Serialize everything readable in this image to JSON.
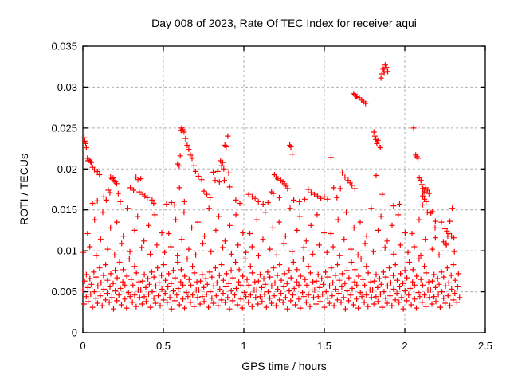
{
  "window": {
    "background": "#ffffff"
  },
  "chart_data": {
    "type": "scatter",
    "title": "Day 008 of 2023, Rate Of TEC Index for receiver aqui",
    "xlabel": "GPS time / hours",
    "ylabel": "ROTI / TECUs",
    "xlim": [
      0,
      2.5
    ],
    "ylim": [
      0,
      0.035
    ],
    "xticks": [
      {
        "value": 0,
        "label": "0"
      },
      {
        "value": 0.5,
        "label": "0.5"
      },
      {
        "value": 1,
        "label": "1"
      },
      {
        "value": 1.5,
        "label": "1.5"
      },
      {
        "value": 2,
        "label": "2"
      },
      {
        "value": 2.5,
        "label": "2.5"
      }
    ],
    "yticks": [
      {
        "value": 0,
        "label": "0"
      },
      {
        "value": 0.005,
        "label": "0.005"
      },
      {
        "value": 0.01,
        "label": "0.01"
      },
      {
        "value": 0.015,
        "label": "0.015"
      },
      {
        "value": 0.02,
        "label": "0.02"
      },
      {
        "value": 0.025,
        "label": "0.025"
      },
      {
        "value": 0.03,
        "label": "0.03"
      },
      {
        "value": 0.035,
        "label": "0.035"
      }
    ],
    "grid": true,
    "grid_color": "#b0b0b0",
    "axis_color": "#000000",
    "legend": "none",
    "x_data_range": [
      0,
      2.34
    ],
    "series": [
      {
        "name": "ROTI",
        "marker": "plus",
        "color": "#ff0000",
        "points": [
          [
            0.008,
            0.0238
          ],
          [
            0.012,
            0.0234
          ],
          [
            0.018,
            0.0231
          ],
          [
            0.022,
            0.0226
          ],
          [
            0.028,
            0.0213
          ],
          [
            0.032,
            0.021
          ],
          [
            0.04,
            0.0211
          ],
          [
            0.047,
            0.0209
          ],
          [
            0.053,
            0.0208
          ],
          [
            0.06,
            0.0202
          ],
          [
            0.072,
            0.0199
          ],
          [
            0.09,
            0.0197
          ],
          [
            0.103,
            0.0193
          ],
          [
            0.06,
            0.0158
          ],
          [
            0.09,
            0.0161
          ],
          [
            0.13,
            0.0166
          ],
          [
            0.145,
            0.0162
          ],
          [
            0.158,
            0.0174
          ],
          [
            0.168,
            0.0171
          ],
          [
            0.172,
            0.019
          ],
          [
            0.18,
            0.0188
          ],
          [
            0.188,
            0.0189
          ],
          [
            0.193,
            0.0186
          ],
          [
            0.202,
            0.0184
          ],
          [
            0.21,
            0.0182
          ],
          [
            0.22,
            0.017
          ],
          [
            0.232,
            0.016
          ],
          [
            0.295,
            0.0177
          ],
          [
            0.315,
            0.0174
          ],
          [
            0.33,
            0.019
          ],
          [
            0.342,
            0.0187
          ],
          [
            0.35,
            0.0172
          ],
          [
            0.36,
            0.0188
          ],
          [
            0.372,
            0.0169
          ],
          [
            0.385,
            0.0167
          ],
          [
            0.4,
            0.0165
          ],
          [
            0.43,
            0.0162
          ],
          [
            0.44,
            0.0158
          ],
          [
            0.52,
            0.0157
          ],
          [
            0.55,
            0.0159
          ],
          [
            0.57,
            0.0156
          ],
          [
            0.588,
            0.0206
          ],
          [
            0.598,
            0.0204
          ],
          [
            0.605,
            0.0216
          ],
          [
            0.61,
            0.0247
          ],
          [
            0.614,
            0.025
          ],
          [
            0.62,
            0.0248
          ],
          [
            0.628,
            0.0245
          ],
          [
            0.638,
            0.0237
          ],
          [
            0.648,
            0.0229
          ],
          [
            0.658,
            0.0224
          ],
          [
            0.668,
            0.0217
          ],
          [
            0.678,
            0.0213
          ],
          [
            0.69,
            0.0204
          ],
          [
            0.7,
            0.0197
          ],
          [
            0.718,
            0.0191
          ],
          [
            0.738,
            0.0187
          ],
          [
            0.752,
            0.0173
          ],
          [
            0.77,
            0.0169
          ],
          [
            0.79,
            0.0165
          ],
          [
            0.6,
            0.0177
          ],
          [
            0.63,
            0.016
          ],
          [
            0.81,
            0.0196
          ],
          [
            0.822,
            0.0186
          ],
          [
            0.838,
            0.0197
          ],
          [
            0.848,
            0.0184
          ],
          [
            0.855,
            0.021
          ],
          [
            0.862,
            0.0204
          ],
          [
            0.868,
            0.0208
          ],
          [
            0.875,
            0.02
          ],
          [
            0.878,
            0.0186
          ],
          [
            0.882,
            0.0229
          ],
          [
            0.89,
            0.0227
          ],
          [
            0.9,
            0.024
          ],
          [
            0.906,
            0.0195
          ],
          [
            0.912,
            0.0178
          ],
          [
            0.95,
            0.0162
          ],
          [
            0.975,
            0.0158
          ],
          [
            1.03,
            0.0169
          ],
          [
            1.052,
            0.0166
          ],
          [
            1.07,
            0.0164
          ],
          [
            1.09,
            0.016
          ],
          [
            1.12,
            0.0157
          ],
          [
            1.15,
            0.0159
          ],
          [
            1.172,
            0.0172
          ],
          [
            1.182,
            0.017
          ],
          [
            1.19,
            0.0193
          ],
          [
            1.2,
            0.019
          ],
          [
            1.212,
            0.0188
          ],
          [
            1.22,
            0.0165
          ],
          [
            1.23,
            0.0186
          ],
          [
            1.242,
            0.0184
          ],
          [
            1.252,
            0.0182
          ],
          [
            1.262,
            0.0179
          ],
          [
            1.272,
            0.0176
          ],
          [
            1.285,
            0.0229
          ],
          [
            1.292,
            0.0227
          ],
          [
            1.3,
            0.0218
          ],
          [
            1.31,
            0.0162
          ],
          [
            1.345,
            0.016
          ],
          [
            1.378,
            0.0163
          ],
          [
            1.4,
            0.0175
          ],
          [
            1.418,
            0.0171
          ],
          [
            1.438,
            0.0169
          ],
          [
            1.458,
            0.0167
          ],
          [
            1.478,
            0.0164
          ],
          [
            1.5,
            0.0166
          ],
          [
            1.52,
            0.0163
          ],
          [
            1.542,
            0.0214
          ],
          [
            1.558,
            0.0177
          ],
          [
            1.578,
            0.0165
          ],
          [
            1.6,
            0.0176
          ],
          [
            1.612,
            0.0195
          ],
          [
            1.628,
            0.019
          ],
          [
            1.648,
            0.0186
          ],
          [
            1.66,
            0.0183
          ],
          [
            1.672,
            0.018
          ],
          [
            1.69,
            0.0176
          ],
          [
            1.682,
            0.0292
          ],
          [
            1.69,
            0.0291
          ],
          [
            1.696,
            0.0289
          ],
          [
            1.702,
            0.0288
          ],
          [
            1.718,
            0.0287
          ],
          [
            1.732,
            0.0284
          ],
          [
            1.744,
            0.0282
          ],
          [
            1.756,
            0.028
          ],
          [
            1.808,
            0.0245
          ],
          [
            1.814,
            0.024
          ],
          [
            1.82,
            0.0236
          ],
          [
            1.826,
            0.0231
          ],
          [
            1.832,
            0.0235
          ],
          [
            1.84,
            0.0228
          ],
          [
            1.848,
            0.0226
          ],
          [
            1.822,
            0.0192
          ],
          [
            1.86,
            0.0169
          ],
          [
            1.852,
            0.0311
          ],
          [
            1.858,
            0.0316
          ],
          [
            1.866,
            0.0322
          ],
          [
            1.872,
            0.0318
          ],
          [
            1.878,
            0.0327
          ],
          [
            1.886,
            0.0324
          ],
          [
            1.894,
            0.0319
          ],
          [
            1.93,
            0.0155
          ],
          [
            1.968,
            0.0157
          ],
          [
            2.055,
            0.025
          ],
          [
            2.068,
            0.0217
          ],
          [
            2.075,
            0.0215
          ],
          [
            2.082,
            0.0213
          ],
          [
            2.09,
            0.0189
          ],
          [
            2.1,
            0.0186
          ],
          [
            2.106,
            0.0181
          ],
          [
            2.112,
            0.0176
          ],
          [
            2.12,
            0.0172
          ],
          [
            2.13,
            0.0177
          ],
          [
            2.14,
            0.0174
          ],
          [
            2.15,
            0.017
          ],
          [
            2.112,
            0.0167
          ],
          [
            2.122,
            0.0163
          ],
          [
            2.132,
            0.016
          ],
          [
            2.11,
            0.0156
          ],
          [
            2.162,
            0.0146
          ],
          [
            2.17,
            0.0148
          ],
          [
            2.19,
            0.0136
          ],
          [
            2.28,
            0.0136
          ],
          [
            2.25,
            0.0127
          ],
          [
            2.262,
            0.0124
          ],
          [
            2.275,
            0.0121
          ],
          [
            2.29,
            0.0118
          ],
          [
            2.305,
            0.0116
          ],
          [
            2.19,
            0.0116
          ],
          [
            2.24,
            0.0111
          ],
          [
            2.258,
            0.0107
          ]
        ],
        "bands": [
          {
            "name": "dense-low-band",
            "x_start": 0,
            "x_end": 2.34,
            "x_step": 0.006,
            "x_jitter": [
              0,
              0.0021,
              -0.0013,
              0.0032,
              -0.0024,
              0.0011,
              -0.0031,
              0.0018,
              0.0004,
              -0.0009
            ],
            "y_cycle": [
              0.0052,
              0.0035,
              0.0063,
              0.0044,
              0.0071,
              0.0055,
              0.0038,
              0.0066,
              0.0047,
              0.0059,
              0.0031,
              0.0074,
              0.005,
              0.0042,
              0.0068,
              0.0036,
              0.0057,
              0.0079,
              0.0045,
              0.0061,
              0.0033,
              0.007,
              0.0053,
              0.004,
              0.0083,
              0.0048,
              0.0064,
              0.0037,
              0.0056,
              0.0072,
              0.0043,
              0.006,
              0.0029,
              0.0076,
              0.0051,
              0.0039,
              0.0067,
              0.0046,
              0.0086,
              0.0054,
              0.0034,
              0.0062,
              0.0077,
              0.0041,
              0.0058,
              0.003,
              0.0069,
              0.0049,
              0.009,
              0.0044,
              0.0065,
              0.0037,
              0.0058,
              0.0081,
              0.0046,
              0.0032,
              0.0073,
              0.0052,
              0.0062,
              0.0043
            ]
          },
          {
            "name": "mid-band",
            "x_start": 0.004,
            "x_end": 2.33,
            "x_step": 0.021,
            "x_jitter": [
              0,
              0.004,
              -0.003,
              0.006,
              -0.005,
              0.002,
              -0.006,
              0.003
            ],
            "y_cycle": [
              0.0098,
              0.0121,
              0.0105,
              0.0138,
              0.0094,
              0.0114,
              0.0147,
              0.0102,
              0.0128,
              0.0095,
              0.0135,
              0.0109,
              0.0118,
              0.0152,
              0.0099,
              0.0125,
              0.0142,
              0.0104,
              0.0112,
              0.0131,
              0.0096,
              0.0144,
              0.0107,
              0.0122
            ]
          }
        ]
      }
    ]
  }
}
